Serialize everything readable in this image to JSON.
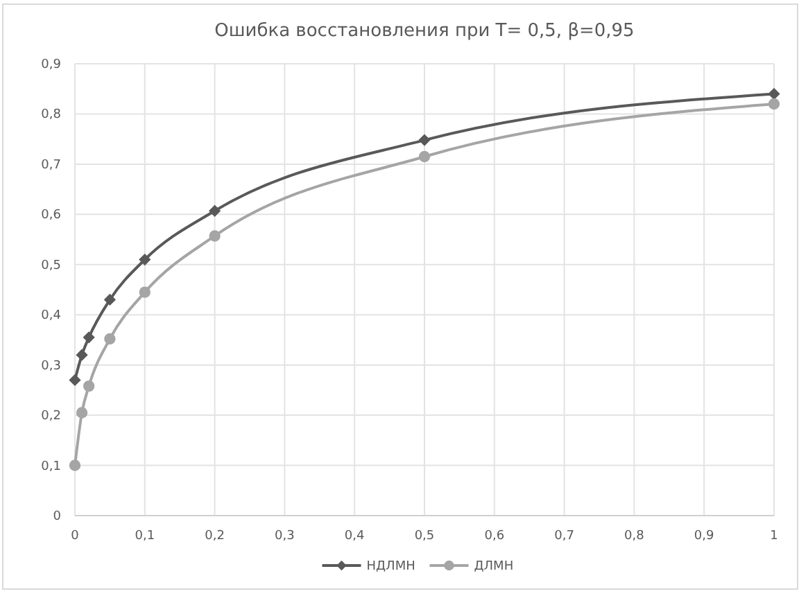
{
  "chart_data": {
    "type": "line",
    "title": "Ошибка восстановления при T= 0,5, β=0,95",
    "x": [
      0,
      0.01,
      0.02,
      0.05,
      0.1,
      0.2,
      0.5,
      1
    ],
    "series": [
      {
        "name": "НДЛМН",
        "color": "#595959",
        "marker": "diamond",
        "values": [
          0.27,
          0.32,
          0.355,
          0.43,
          0.51,
          0.607,
          0.748,
          0.84
        ]
      },
      {
        "name": "ДЛМН",
        "color": "#a5a5a5",
        "marker": "circle",
        "values": [
          0.1,
          0.205,
          0.258,
          0.352,
          0.445,
          0.557,
          0.715,
          0.82
        ]
      }
    ],
    "xlim": [
      0,
      1
    ],
    "xticks": [
      0,
      {
        "value": 0.1,
        "label": "0,1"
      },
      {
        "value": 0.2,
        "label": "0,2"
      },
      {
        "value": 0.3,
        "label": "0,3"
      },
      {
        "value": 0.4,
        "label": "0,4"
      },
      {
        "value": 0.5,
        "label": "0,5"
      },
      {
        "value": 0.6,
        "label": "0,6"
      },
      {
        "value": 0.7,
        "label": "0,7"
      },
      {
        "value": 0.8,
        "label": "0,8"
      },
      {
        "value": 0.9,
        "label": "0,9"
      },
      1
    ],
    "ylim": [
      0,
      0.9
    ],
    "yticks": [
      0,
      {
        "value": 0.1,
        "label": "0,1"
      },
      {
        "value": 0.2,
        "label": "0,2"
      },
      {
        "value": 0.3,
        "label": "0,3"
      },
      {
        "value": 0.4,
        "label": "0,4"
      },
      {
        "value": 0.5,
        "label": "0,5"
      },
      {
        "value": 0.6,
        "label": "0,6"
      },
      {
        "value": 0.7,
        "label": "0,7"
      },
      {
        "value": 0.8,
        "label": "0,8"
      },
      {
        "value": 0.9,
        "label": "0,9"
      }
    ],
    "grid": true,
    "legend": "bottom",
    "line_style": "solid"
  }
}
